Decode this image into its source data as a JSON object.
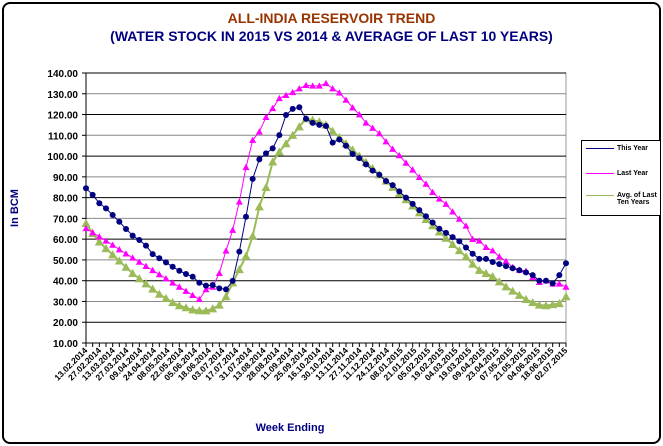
{
  "chart_data": {
    "type": "line",
    "title": "ALL-INDIA RESERVOIR TREND",
    "subtitle": "(WATER STOCK IN 2015 VS 2014 & AVERAGE OF LAST 10 YEARS)",
    "xlabel": "Week Ending",
    "ylabel": "In BCM",
    "ylim": [
      10,
      140
    ],
    "yticks": [
      "10.00",
      "20.00",
      "30.00",
      "40.00",
      "50.00",
      "60.00",
      "70.00",
      "80.00",
      "90.00",
      "100.00",
      "110.00",
      "120.00",
      "130.00",
      "140.00"
    ],
    "grid": true,
    "legend_placement": "right",
    "x_tick_labels": [
      "13.02.2014",
      "27.02.2014",
      "13.03.2014",
      "27.03.2014",
      "09.04.2014",
      "24.04.2014",
      "08.05.2014",
      "22.05.2014",
      "05.06.2014",
      "18.06.2014",
      "03.07.2014",
      "17.07.2014",
      "31.07.2014",
      "13.08.2014",
      "28.08.2014",
      "11.09.2014",
      "25.09.2014",
      "16.10.2014",
      "30.10.2014",
      "13.11.2014",
      "27.11.2014",
      "11.12.2014",
      "24.12.2014",
      "08.01.2015",
      "21.01.2015",
      "05.02.2015",
      "19.02.2015",
      "04.03.2015",
      "19.03.2015",
      "09.04.2015",
      "23.04.2015",
      "07.05.2015",
      "21.05.2015",
      "04.06.2015",
      "18.06.2015",
      "02.07.2015"
    ],
    "series": [
      {
        "name": "This Year",
        "color": "#000080",
        "marker": "circle",
        "values": [
          84.5,
          81.3,
          77.3,
          74.8,
          71.6,
          68.4,
          64.9,
          61.7,
          59.6,
          56.9,
          52.8,
          50.8,
          48.8,
          46.7,
          44.8,
          43.2,
          41.9,
          39.0,
          37.6,
          37.9,
          36.3,
          35.8,
          39.9,
          54.0,
          70.8,
          89.0,
          98.4,
          101.3,
          103.7,
          110.1,
          119.8,
          122.7,
          123.5,
          118,
          116,
          115,
          114.5,
          106.5,
          108,
          105,
          101,
          99,
          96,
          93,
          91,
          88,
          86,
          83,
          80,
          77,
          74,
          71,
          68,
          65,
          63,
          61,
          59,
          56,
          53,
          50.5,
          50.5,
          49,
          48,
          47,
          46,
          45,
          44,
          42.7,
          40,
          40,
          38.7,
          42.7,
          48.4
        ]
      },
      {
        "name": "Last Year",
        "color": "#FF00FF",
        "marker": "triangle",
        "values": [
          65.2,
          63.2,
          61.2,
          59.2,
          57.2,
          55,
          53,
          51,
          49,
          47,
          45,
          43,
          41,
          39,
          37,
          35,
          33,
          31,
          35.8,
          37,
          43.6,
          54.4,
          64.4,
          78,
          94.6,
          107.7,
          111.7,
          118.7,
          123,
          127.8,
          129.3,
          130.7,
          132.5,
          134.1,
          133.8,
          133.8,
          135,
          132.5,
          130.5,
          127,
          123.3,
          120,
          116,
          113.5,
          110.9,
          107,
          103.4,
          100.3,
          96.7,
          93.4,
          89.8,
          86.6,
          82.6,
          79.4,
          76.9,
          73.2,
          69.7,
          66.4,
          60,
          59.2,
          56.1,
          54.5,
          51.6,
          49.4,
          46.5,
          45.2,
          44.6,
          41.7,
          39.3,
          40,
          38.5,
          38.5,
          37
        ]
      },
      {
        "name": "Avg. of Last Ten Years",
        "color": "#9BBB59",
        "marker": "triangle",
        "values": [
          67.6,
          62.8,
          58.7,
          55.5,
          52.5,
          49.5,
          46.5,
          43.5,
          41,
          38.5,
          36,
          33.5,
          31.5,
          29.5,
          28,
          27,
          26,
          25.6,
          25.5,
          26.5,
          28.3,
          32.3,
          39,
          45.4,
          51.8,
          61.5,
          75.6,
          84.9,
          97.2,
          102,
          106,
          110,
          114.1,
          118,
          117.3,
          116.5,
          115,
          112,
          109,
          106,
          103,
          100,
          97,
          94,
          91,
          88,
          85,
          82,
          79,
          76,
          72.7,
          69.5,
          66.5,
          63.5,
          60.5,
          57.5,
          54.5,
          51.5,
          48,
          45,
          43.5,
          42,
          39.5,
          37.1,
          35,
          33,
          31,
          29.5,
          28.3,
          28,
          28.5,
          29,
          32.3
        ]
      }
    ],
    "legend": [
      "This Year",
      "Last Year",
      "Avg. of Last",
      "Ten Years"
    ]
  }
}
